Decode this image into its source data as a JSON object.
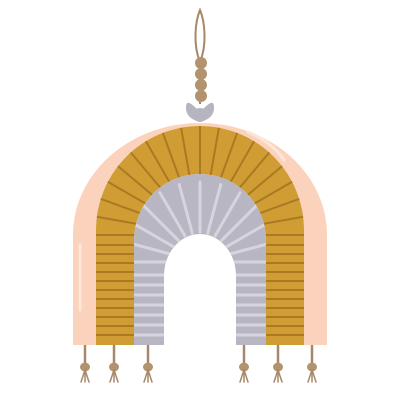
{
  "illustration": {
    "subject": "boho-macrame-rainbow-wall-hanging",
    "colors": {
      "background": "#ffffff",
      "outer_band": "#fbd3bc",
      "outer_band_highlight": "#fde6d8",
      "middle_band": "#d09c34",
      "middle_band_stripes": "#a97a22",
      "inner_band": "#b7b6c2",
      "inner_band_stripes": "#d6d5de",
      "string": "#a88768",
      "beads": "#b39270",
      "bow": "#b5b4c0"
    },
    "tassel_count": 6,
    "bead_count": 4
  }
}
